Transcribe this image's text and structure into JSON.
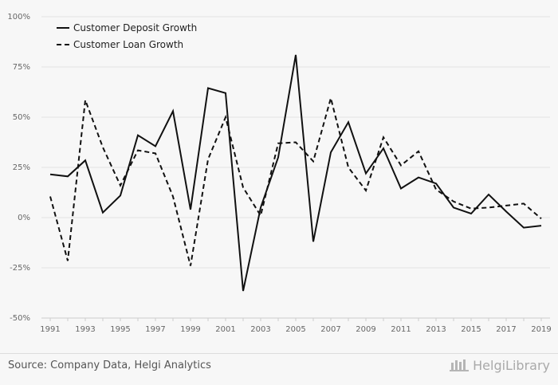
{
  "chart_data": {
    "type": "line",
    "x": [
      1991,
      1992,
      1993,
      1994,
      1995,
      1996,
      1997,
      1998,
      1999,
      2000,
      2001,
      2002,
      2003,
      2004,
      2005,
      2006,
      2007,
      2008,
      2009,
      2010,
      2011,
      2012,
      2013,
      2014,
      2015,
      2016,
      2017,
      2018,
      2019
    ],
    "x_tick_labels": [
      "1991",
      "1993",
      "1995",
      "1997",
      "1999",
      "2001",
      "2003",
      "2005",
      "2007",
      "2009",
      "2011",
      "2013",
      "2015",
      "2017",
      "2019"
    ],
    "y_tick_labels": [
      "100%",
      "75%",
      "50%",
      "25%",
      "0%",
      "-25%",
      "-50%"
    ],
    "y_ticks": [
      100,
      75,
      50,
      25,
      0,
      -25,
      -50
    ],
    "ylim": [
      -50,
      100
    ],
    "xlim": [
      1990.5,
      2019.5
    ],
    "grid": true,
    "legend_position": "top-left",
    "series": [
      {
        "name": "Customer Deposit Growth",
        "style": "solid",
        "color": "#111111",
        "values": [
          21.5,
          20.5,
          28.5,
          2.5,
          11,
          41,
          35.5,
          53,
          4,
          64.5,
          62,
          -36.5,
          5,
          30,
          81,
          -12,
          32.5,
          47.5,
          22,
          34.5,
          14.5,
          20,
          17,
          5,
          2,
          11.5,
          3,
          -5,
          -4
        ]
      },
      {
        "name": "Customer Loan Growth",
        "style": "dashed",
        "color": "#111111",
        "values": [
          10.5,
          -21.5,
          58.5,
          35,
          16,
          33.5,
          32,
          10.5,
          -24,
          29,
          50,
          15,
          1,
          37,
          37.5,
          28,
          59.5,
          25,
          13.5,
          40,
          26,
          33,
          14,
          8,
          4.5,
          5,
          6,
          7,
          -0.5
        ]
      }
    ]
  },
  "footer": {
    "source": "Source: Company Data, Helgi Analytics",
    "logo_text": "HelgiLibrary"
  }
}
